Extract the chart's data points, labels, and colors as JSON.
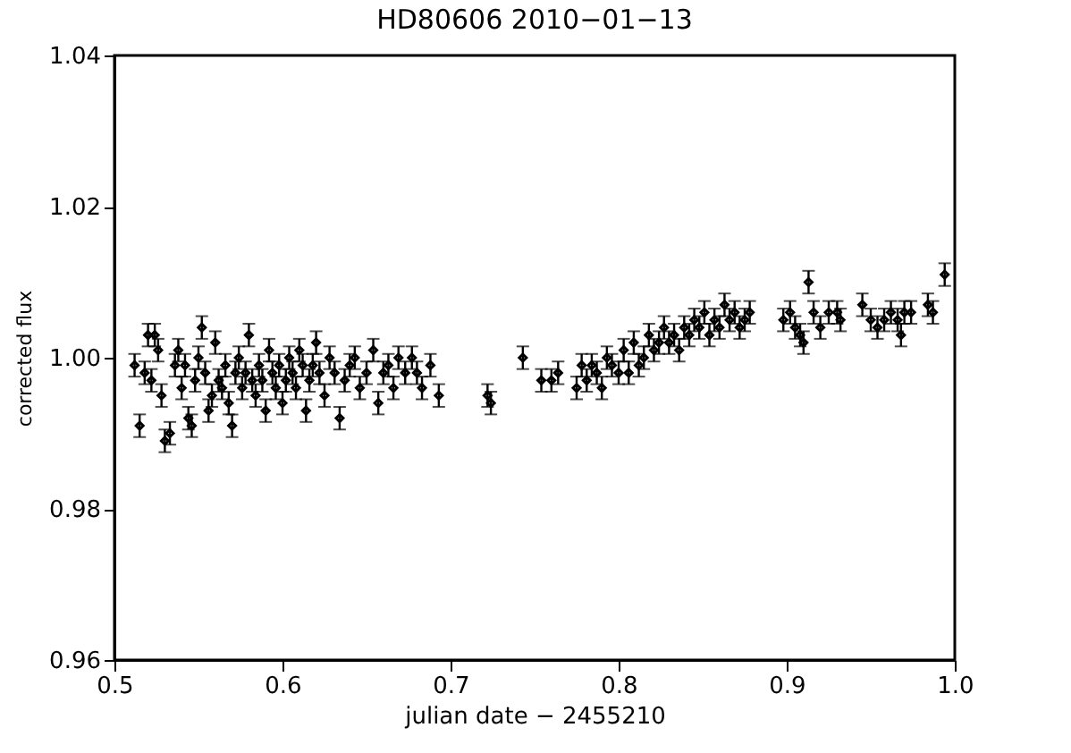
{
  "chart_data": {
    "type": "scatter",
    "title": "HD80606    2010−01−13",
    "xlabel": "julian date −        2455210",
    "ylabel": "corrected flux",
    "x": [
      0.512,
      0.515,
      0.518,
      0.52,
      0.522,
      0.524,
      0.526,
      0.528,
      0.53,
      0.533,
      0.536,
      0.538,
      0.54,
      0.542,
      0.544,
      0.546,
      0.548,
      0.55,
      0.552,
      0.554,
      0.556,
      0.558,
      0.56,
      0.562,
      0.564,
      0.566,
      0.568,
      0.57,
      0.572,
      0.574,
      0.576,
      0.578,
      0.58,
      0.582,
      0.584,
      0.586,
      0.588,
      0.59,
      0.592,
      0.594,
      0.596,
      0.598,
      0.6,
      0.602,
      0.604,
      0.606,
      0.608,
      0.61,
      0.612,
      0.614,
      0.616,
      0.618,
      0.62,
      0.622,
      0.625,
      0.628,
      0.631,
      0.634,
      0.637,
      0.64,
      0.643,
      0.646,
      0.65,
      0.654,
      0.657,
      0.66,
      0.663,
      0.666,
      0.669,
      0.673,
      0.677,
      0.68,
      0.683,
      0.688,
      0.693,
      0.722,
      0.724,
      0.743,
      0.754,
      0.76,
      0.764,
      0.775,
      0.778,
      0.781,
      0.784,
      0.787,
      0.79,
      0.793,
      0.796,
      0.8,
      0.803,
      0.806,
      0.809,
      0.812,
      0.815,
      0.818,
      0.821,
      0.824,
      0.827,
      0.83,
      0.833,
      0.836,
      0.839,
      0.842,
      0.845,
      0.848,
      0.851,
      0.854,
      0.857,
      0.86,
      0.863,
      0.866,
      0.869,
      0.872,
      0.875,
      0.878,
      0.898,
      0.902,
      0.905,
      0.908,
      0.91,
      0.913,
      0.916,
      0.92,
      0.925,
      0.93,
      0.932,
      0.945,
      0.95,
      0.954,
      0.958,
      0.962,
      0.966,
      0.968,
      0.97,
      0.974,
      0.984,
      0.987,
      0.994
    ],
    "series": [
      {
        "color": "#000000",
        "values": [
          0.999,
          0.991,
          0.998,
          1.003,
          0.997,
          1.003,
          1.001,
          0.995,
          0.989,
          0.99,
          0.999,
          1.001,
          0.996,
          0.999,
          0.992,
          0.991,
          0.997,
          1.0,
          1.004,
          0.998,
          0.993,
          0.995,
          1.002,
          0.997,
          0.996,
          0.999,
          0.994,
          0.991,
          0.998,
          1.0,
          0.996,
          0.998,
          1.003,
          0.997,
          0.995,
          0.999,
          0.997,
          0.993,
          1.001,
          0.998,
          0.996,
          0.999,
          0.994,
          0.997,
          1.0,
          0.998,
          0.996,
          1.001,
          0.999,
          0.993,
          0.997,
          0.999,
          1.002,
          0.998,
          0.995,
          1.0,
          0.998,
          0.992,
          0.997,
          0.999,
          1.0,
          0.996,
          0.998,
          1.001,
          0.994,
          0.998,
          0.999,
          0.996,
          1.0,
          0.998,
          1.0,
          0.998,
          0.996,
          0.999,
          0.995,
          0.995,
          0.994,
          1.0,
          0.997,
          0.997,
          0.998,
          0.996,
          0.999,
          0.997,
          0.999,
          0.998,
          0.996,
          1.0,
          0.999,
          0.998,
          1.001,
          0.998,
          1.002,
          0.999,
          1.0,
          1.003,
          1.001,
          1.002,
          1.004,
          1.002,
          1.003,
          1.001,
          1.004,
          1.003,
          1.005,
          1.004,
          1.006,
          1.003,
          1.005,
          1.004,
          1.007,
          1.005,
          1.006,
          1.004,
          1.005,
          1.006,
          1.005,
          1.006,
          1.004,
          1.003,
          1.002,
          1.01,
          1.006,
          1.004,
          1.006,
          1.006,
          1.005,
          1.007,
          1.005,
          1.004,
          1.005,
          1.006,
          1.005,
          1.003,
          1.006,
          1.006,
          1.007,
          1.006,
          1.011
        ],
        "errors": [
          0.0015,
          0.0015,
          0.0015,
          0.0015,
          0.0015,
          0.0015,
          0.0015,
          0.0015,
          0.0015,
          0.0015,
          0.0015,
          0.0015,
          0.0015,
          0.0015,
          0.0015,
          0.0015,
          0.0015,
          0.0015,
          0.0015,
          0.0015,
          0.0015,
          0.0015,
          0.0015,
          0.0015,
          0.0015,
          0.0015,
          0.0015,
          0.0015,
          0.0015,
          0.0015,
          0.0015,
          0.0015,
          0.0015,
          0.0015,
          0.0015,
          0.0015,
          0.0015,
          0.0015,
          0.0015,
          0.0015,
          0.0015,
          0.0015,
          0.0015,
          0.0015,
          0.0015,
          0.0015,
          0.0015,
          0.0015,
          0.0015,
          0.0015,
          0.0015,
          0.0015,
          0.0015,
          0.0015,
          0.0015,
          0.0015,
          0.0015,
          0.0015,
          0.0015,
          0.0015,
          0.0015,
          0.0015,
          0.0015,
          0.0015,
          0.0015,
          0.0015,
          0.0015,
          0.0015,
          0.0015,
          0.0015,
          0.0015,
          0.0015,
          0.0015,
          0.0015,
          0.0015,
          0.0015,
          0.0015,
          0.0015,
          0.0015,
          0.0015,
          0.0015,
          0.0015,
          0.0015,
          0.0015,
          0.0015,
          0.0015,
          0.0015,
          0.0015,
          0.0015,
          0.0015,
          0.0015,
          0.0015,
          0.0015,
          0.0015,
          0.0015,
          0.0015,
          0.0015,
          0.0015,
          0.0015,
          0.0015,
          0.0015,
          0.0015,
          0.0015,
          0.0015,
          0.0015,
          0.0015,
          0.0015,
          0.0015,
          0.0015,
          0.0015,
          0.0015,
          0.0015,
          0.0015,
          0.0015,
          0.0015,
          0.0015,
          0.0015,
          0.0015,
          0.0015,
          0.0015,
          0.0015,
          0.0015,
          0.0015,
          0.0015,
          0.0015,
          0.0015,
          0.0015,
          0.0015,
          0.0015,
          0.0015,
          0.0015,
          0.0015,
          0.0015,
          0.0015,
          0.0015,
          0.0015,
          0.0015,
          0.0015,
          0.0015
        ]
      }
    ],
    "xlim": [
      0.5,
      1.0
    ],
    "xticks": [
      0.5,
      0.6,
      0.7,
      0.8,
      0.9,
      {
        "value": 1.0,
        "label": "1.0"
      }
    ],
    "ylim": [
      0.96,
      1.04
    ],
    "yticks": [
      0.96,
      0.98,
      {
        "value": 1.0,
        "label": "1.00"
      },
      1.02,
      1.04
    ],
    "grid": false,
    "marker": "diamond"
  }
}
